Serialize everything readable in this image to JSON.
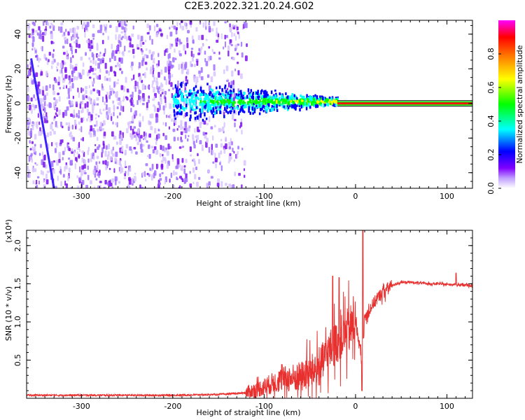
{
  "title": "C2E3.2022.321.20.24.G02",
  "colors": {
    "trace": "#e8302f",
    "axis": "#000000"
  },
  "chart_data": [
    {
      "type": "heatmap",
      "xlabel": "Height of straight line (km)",
      "ylabel": "Frequency (Hz)",
      "xlim": [
        -360,
        128
      ],
      "ylim": [
        -49,
        48
      ],
      "x_ticks": [
        -300,
        -200,
        -100,
        0,
        100
      ],
      "y_ticks": [
        -40,
        -20,
        0,
        20,
        40
      ],
      "colorbar": {
        "label": "Normalized spectral amplitude",
        "range": [
          0.0,
          1.0
        ],
        "ticks": [
          0.0,
          0.2,
          0.4,
          0.6,
          0.8
        ],
        "tick_labels": [
          "0.0",
          "0.2",
          "0.4",
          "0.6",
          "0.8"
        ],
        "colormap": [
          "#ffffff",
          "#8000ff",
          "#0000ff",
          "#00ffff",
          "#00ff00",
          "#ffff00",
          "#ff8000",
          "#ff0000",
          "#ff00ff"
        ]
      },
      "features": [
        {
          "region": "diffuse noise",
          "x_range": [
            -360,
            -120
          ],
          "freq_range": [
            -49,
            48
          ],
          "amplitude": 0.1
        },
        {
          "region": "converging band",
          "x_range": [
            -200,
            -20
          ],
          "freq_center": 2,
          "amplitude": 0.3
        },
        {
          "region": "carrier line",
          "x_range": [
            -20,
            128
          ],
          "freq_center": 0,
          "amplitude": 0.95
        },
        {
          "region": "diagonal streak",
          "x_start": -355,
          "freq_start": 26,
          "x_end": -330,
          "freq_end": -49,
          "amplitude": 0.3
        }
      ]
    },
    {
      "type": "line",
      "xlabel": "Height of straight line (km)",
      "ylabel": "SNR (10 * v/v)",
      "y_multiplier": "(x10⁴)",
      "xlim": [
        -360,
        128
      ],
      "ylim": [
        0,
        2.2
      ],
      "x_ticks": [
        -300,
        -200,
        -100,
        0,
        100
      ],
      "y_ticks": [
        0.5,
        1.0,
        1.5,
        2.0
      ],
      "y_tick_labels": [
        "0.5",
        "1.0",
        "1.5",
        "2.0"
      ],
      "x": [
        -360,
        -300,
        -200,
        -150,
        -120,
        -100,
        -80,
        -60,
        -40,
        -30,
        -20,
        -10,
        0,
        7,
        10,
        20,
        30,
        40,
        50,
        60,
        70,
        80,
        90,
        100,
        110,
        120,
        128
      ],
      "y": [
        0.04,
        0.04,
        0.04,
        0.05,
        0.07,
        0.15,
        0.25,
        0.28,
        0.4,
        0.6,
        0.75,
        0.85,
        1.0,
        0.5,
        1.05,
        1.25,
        1.4,
        1.48,
        1.52,
        1.52,
        1.51,
        1.5,
        1.5,
        1.49,
        1.49,
        1.48,
        1.47
      ],
      "spikes": [
        {
          "x": -25,
          "y": 1.6
        },
        {
          "x": -18,
          "y": 1.58
        },
        {
          "x": 8,
          "y": 2.2
        },
        {
          "x": 7,
          "y": 0.1
        },
        {
          "x": 110,
          "y": 1.64
        }
      ]
    }
  ]
}
